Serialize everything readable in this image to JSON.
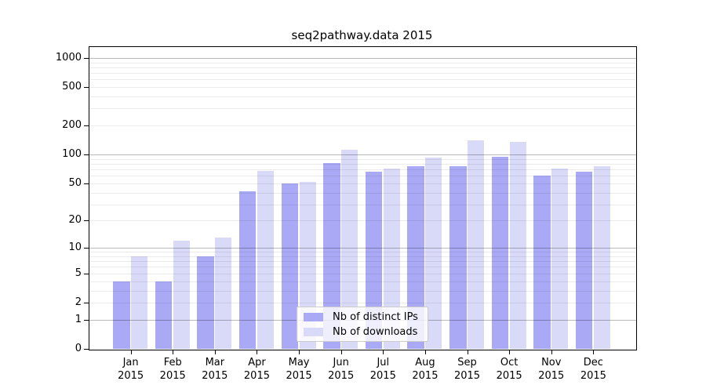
{
  "title": "seq2pathway.data 2015",
  "colors": {
    "ips_bar": "#a9a9f5",
    "downloads_bar": "#d9d9f8",
    "major_gridline": "rgba(0,0,0,0.27)",
    "minor_gridline": "rgba(0,0,0,0.08)",
    "spine": "#000000",
    "legend_border": "#cccccc"
  },
  "chart_data": {
    "type": "bar",
    "title": "seq2pathway.data 2015",
    "categories": [
      "Jan",
      "Feb",
      "Mar",
      "Apr",
      "May",
      "Jun",
      "Jul",
      "Aug",
      "Sep",
      "Oct",
      "Nov",
      "Dec"
    ],
    "year": "2015",
    "series": [
      {
        "name": "Nb of distinct IPs",
        "color": "#a9a9f5",
        "values": [
          4,
          4,
          8,
          41,
          50,
          81,
          66,
          75,
          76,
          95,
          60,
          66
        ]
      },
      {
        "name": "Nb of downloads",
        "color": "#d9d9f8",
        "values": [
          8,
          12,
          13,
          68,
          52,
          112,
          71,
          93,
          140,
          135,
          72,
          75
        ]
      }
    ],
    "xlabel": "",
    "ylabel": "",
    "y_scale": "log1p",
    "y_ticks": [
      0,
      1,
      2,
      5,
      10,
      20,
      50,
      100,
      200,
      500,
      1000
    ],
    "major_grid_values": [
      1,
      10,
      100,
      1000
    ],
    "ylim": [
      0,
      1320
    ],
    "grid": true,
    "grid_on_top": true,
    "legend_position": "bottom-center"
  }
}
